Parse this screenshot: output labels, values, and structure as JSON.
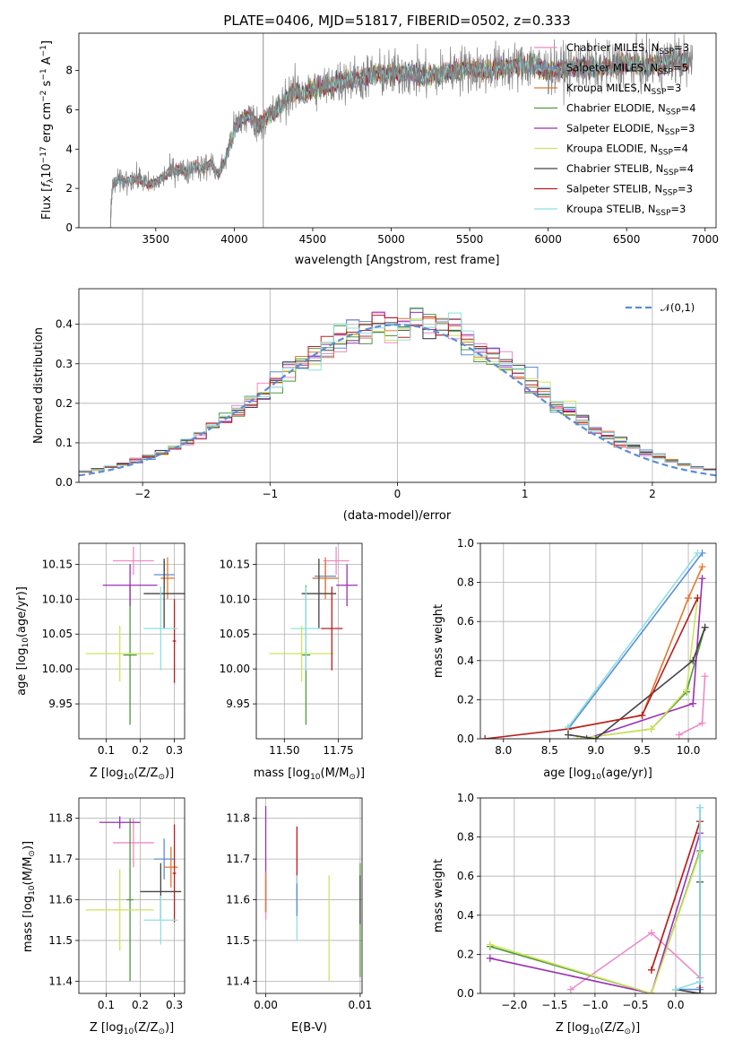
{
  "colors": {
    "Chabrier MILES": "#ee8ac8",
    "Salpeter MILES": "#5b8dd8",
    "Kroupa MILES": "#e0792f",
    "Chabrier ELODIE": "#4e9a3a",
    "Salpeter ELODIE": "#9a2fb5",
    "Kroupa ELODIE": "#cfe35f",
    "Chabrier STELIB": "#444444",
    "Salpeter STELIB": "#b81e1e",
    "Kroupa STELIB": "#8ee0e0"
  },
  "chart_data": [
    {
      "id": "spectrum",
      "type": "line",
      "title": "PLATE=0406, MJD=51817, FIBERID=0502, z=0.333",
      "xlabel": "wavelength [Angstrom, rest frame]",
      "ylabel_parts": [
        "Flux [",
        "f",
        "λ",
        "10",
        "−17",
        " erg cm",
        "−2",
        " s",
        "−1",
        " A",
        "−1",
        "]"
      ],
      "xlim": [
        3010,
        7070
      ],
      "ylim": [
        0,
        9.9
      ],
      "xticks": [
        3500,
        4000,
        4500,
        5000,
        5500,
        6000,
        6500,
        7000
      ],
      "yticks": [
        0,
        2,
        4,
        6,
        8
      ],
      "vline_x": 4185,
      "x": [
        3200,
        3230,
        3300,
        3400,
        3450,
        3500,
        3550,
        3600,
        3650,
        3700,
        3750,
        3800,
        3850,
        3900,
        3950,
        4000,
        4050,
        4100,
        4150,
        4200,
        4250,
        4300,
        4350,
        4400,
        4450,
        4500,
        4600,
        4700,
        4800,
        4900,
        5000,
        5100,
        5200,
        5300,
        5400,
        5500,
        5600,
        5700,
        5800,
        5900,
        6000,
        6100,
        6200,
        6300,
        6400,
        6500,
        6600,
        6700,
        6800,
        6900
      ],
      "y": [
        0,
        2.3,
        2.4,
        2.5,
        2.2,
        2.3,
        2.6,
        2.9,
        3.0,
        2.8,
        3.2,
        3.0,
        3.3,
        2.7,
        3.6,
        5.0,
        5.5,
        5.7,
        5.2,
        5.6,
        5.8,
        6.2,
        6.8,
        6.9,
        6.8,
        7.1,
        7.2,
        7.5,
        7.6,
        7.8,
        7.8,
        7.9,
        7.7,
        7.8,
        8.0,
        8.1,
        8.0,
        8.2,
        8.2,
        8.3,
        8.0,
        8.1,
        8.2,
        8.1,
        8.2,
        8.4,
        8.2,
        8.3,
        8.6,
        8.4
      ],
      "legend_loc": "upper right",
      "legend": [
        {
          "model": "Chabrier MILES",
          "nssp": "3"
        },
        {
          "model": "Salpeter MILES",
          "nssp": "5"
        },
        {
          "model": "Kroupa MILES",
          "nssp": "3"
        },
        {
          "model": "Chabrier ELODIE",
          "nssp": "4"
        },
        {
          "model": "Salpeter ELODIE",
          "nssp": "3"
        },
        {
          "model": "Kroupa ELODIE",
          "nssp": "4"
        },
        {
          "model": "Chabrier STELIB",
          "nssp": "4"
        },
        {
          "model": "Salpeter STELIB",
          "nssp": "3"
        },
        {
          "model": "Kroupa STELIB",
          "nssp": "3"
        }
      ],
      "legend_text": {
        "n_label": "N",
        "n_sub": "SSP"
      }
    },
    {
      "id": "residuals",
      "type": "histogram",
      "xlabel": "(data-model)/error",
      "ylabel": "Normed distribution",
      "xlim": [
        -2.5,
        2.5
      ],
      "ylim": [
        0,
        0.49
      ],
      "xticks": [
        -2,
        -1,
        0,
        1,
        2
      ],
      "yticks": [
        0.0,
        0.1,
        0.2,
        0.3,
        0.4
      ],
      "bin_width": 0.1,
      "gaussian_label": "𝒩(0,1)",
      "grid": true
    },
    {
      "id": "age_vs_Z",
      "type": "errorbar",
      "xlabel_parts": [
        "Z [log",
        "10",
        "(Z/Z",
        "⊙",
        ")]"
      ],
      "ylabel_parts": [
        "age  [log",
        "10",
        "(age/yr)]"
      ],
      "xlim": [
        0.02,
        0.33
      ],
      "ylim": [
        9.9,
        10.18
      ],
      "xticks": [
        0.1,
        0.2,
        0.3
      ],
      "yticks": [
        9.95,
        10.0,
        10.05,
        10.1,
        10.15
      ],
      "points": [
        {
          "model": "Chabrier MILES",
          "x": 0.18,
          "xerr": 0.06,
          "y": 10.155,
          "yerr": 0.02
        },
        {
          "model": "Salpeter MILES",
          "x": 0.27,
          "xerr": 0.03,
          "y": 10.135,
          "yerr": 0.02
        },
        {
          "model": "Kroupa MILES",
          "x": 0.28,
          "xerr": 0.02,
          "y": 10.13,
          "yerr": 0.03
        },
        {
          "model": "Chabrier ELODIE",
          "x": 0.17,
          "xerr": 0.02,
          "y": 10.02,
          "yerr": 0.1
        },
        {
          "model": "Salpeter ELODIE",
          "x": 0.17,
          "xerr": 0.08,
          "y": 10.12,
          "yerr": 0.03
        },
        {
          "model": "Kroupa ELODIE",
          "x": 0.14,
          "xerr": 0.1,
          "y": 10.022,
          "yerr": 0.04
        },
        {
          "model": "Chabrier STELIB",
          "x": 0.27,
          "xerr": 0.06,
          "y": 10.108,
          "yerr": 0.05
        },
        {
          "model": "Salpeter STELIB",
          "x": 0.3,
          "xerr": 0.005,
          "y": 10.04,
          "yerr": 0.06
        },
        {
          "model": "Kroupa STELIB",
          "x": 0.26,
          "xerr": 0.05,
          "y": 10.058,
          "yerr": 0.06
        }
      ]
    },
    {
      "id": "age_vs_mass",
      "type": "errorbar",
      "xlabel_parts": [
        "mass [log",
        "10",
        "(M/M",
        "⊙",
        ")]"
      ],
      "ylabel_parts": [],
      "xlim": [
        11.37,
        11.86
      ],
      "ylim": [
        9.9,
        10.18
      ],
      "xticks": [
        11.5,
        11.75
      ],
      "yticks": [
        9.95,
        10.0,
        10.05,
        10.1,
        10.15
      ],
      "points": [
        {
          "model": "Chabrier MILES",
          "x": 11.74,
          "xerr": 0.06,
          "y": 10.155,
          "yerr": 0.02
        },
        {
          "model": "Salpeter MILES",
          "x": 11.69,
          "xerr": 0.05,
          "y": 10.133,
          "yerr": 0.02
        },
        {
          "model": "Kroupa MILES",
          "x": 11.69,
          "xerr": 0.06,
          "y": 10.13,
          "yerr": 0.03
        },
        {
          "model": "Chabrier ELODIE",
          "x": 11.6,
          "xerr": 0.02,
          "y": 10.02,
          "yerr": 0.1
        },
        {
          "model": "Salpeter ELODIE",
          "x": 11.79,
          "xerr": 0.05,
          "y": 10.12,
          "yerr": 0.03
        },
        {
          "model": "Kroupa ELODIE",
          "x": 11.58,
          "xerr": 0.15,
          "y": 10.022,
          "yerr": 0.04
        },
        {
          "model": "Chabrier STELIB",
          "x": 11.66,
          "xerr": 0.08,
          "y": 10.108,
          "yerr": 0.05
        },
        {
          "model": "Salpeter STELIB",
          "x": 11.72,
          "xerr": 0.05,
          "y": 10.058,
          "yerr": 0.06
        },
        {
          "model": "Kroupa STELIB",
          "x": 11.6,
          "xerr": 0.07,
          "y": 10.058,
          "yerr": 0.06
        }
      ]
    },
    {
      "id": "massweight_vs_age",
      "type": "line",
      "xlabel_parts": [
        "age  [log",
        "10",
        "(age/yr)]"
      ],
      "ylabel": "mass weight",
      "xlim": [
        7.75,
        10.3
      ],
      "ylim": [
        0,
        1.0
      ],
      "xticks": [
        8.0,
        8.5,
        9.0,
        9.5,
        10.0
      ],
      "yticks": [
        0.0,
        0.2,
        0.4,
        0.6,
        0.8,
        1.0
      ],
      "series": [
        {
          "model": "Chabrier MILES",
          "x": [
            9.9,
            10.15,
            10.18
          ],
          "y": [
            0.02,
            0.08,
            0.32
          ]
        },
        {
          "model": "Salpeter MILES",
          "x": [
            8.7,
            10.15
          ],
          "y": [
            0.05,
            0.95
          ]
        },
        {
          "model": "Kroupa MILES",
          "x": [
            8.7,
            9.5,
            10.0,
            10.15
          ],
          "y": [
            0.05,
            0.12,
            0.72,
            0.88
          ]
        },
        {
          "model": "Chabrier ELODIE",
          "x": [
            8.8,
            9.6,
            9.98,
            10.18
          ],
          "y": [
            0.0,
            0.05,
            0.24,
            0.57
          ]
        },
        {
          "model": "Salpeter ELODIE",
          "x": [
            8.9,
            10.05,
            10.15
          ],
          "y": [
            0.0,
            0.18,
            0.82
          ]
        },
        {
          "model": "Kroupa ELODIE",
          "x": [
            8.8,
            9.6,
            9.98,
            10.1
          ],
          "y": [
            0.0,
            0.05,
            0.25,
            0.72
          ]
        },
        {
          "model": "Chabrier STELIB",
          "x": [
            8.7,
            9.0,
            10.05,
            10.18
          ],
          "y": [
            0.02,
            0.0,
            0.4,
            0.57
          ]
        },
        {
          "model": "Salpeter STELIB",
          "x": [
            7.8,
            8.7,
            9.5,
            10.1
          ],
          "y": [
            0.0,
            0.05,
            0.12,
            0.72
          ]
        },
        {
          "model": "Kroupa STELIB",
          "x": [
            8.7,
            10.1
          ],
          "y": [
            0.06,
            0.95
          ]
        }
      ]
    },
    {
      "id": "mass_vs_Z",
      "type": "errorbar",
      "xlabel_parts": [
        "Z [log",
        "10",
        "(Z/Z",
        "⊙",
        ")]"
      ],
      "ylabel_parts": [
        "mass [log",
        "10",
        "(M/M",
        "⊙",
        ")]"
      ],
      "xlim": [
        0.02,
        0.33
      ],
      "ylim": [
        11.37,
        11.85
      ],
      "xticks": [
        0.1,
        0.2,
        0.3
      ],
      "yticks": [
        11.4,
        11.5,
        11.6,
        11.7,
        11.8
      ],
      "points": [
        {
          "model": "Chabrier MILES",
          "x": 0.18,
          "xerr": 0.06,
          "y": 11.74,
          "yerr": 0.06
        },
        {
          "model": "Salpeter MILES",
          "x": 0.27,
          "xerr": 0.03,
          "y": 11.7,
          "yerr": 0.05
        },
        {
          "model": "Kroupa MILES",
          "x": 0.29,
          "xerr": 0.02,
          "y": 11.68,
          "yerr": 0.05
        },
        {
          "model": "Chabrier ELODIE",
          "x": 0.17,
          "xerr": 0.01,
          "y": 11.6,
          "yerr": 0.2
        },
        {
          "model": "Salpeter ELODIE",
          "x": 0.14,
          "xerr": 0.06,
          "y": 11.79,
          "yerr": 0.015
        },
        {
          "model": "Kroupa ELODIE",
          "x": 0.14,
          "xerr": 0.1,
          "y": 11.575,
          "yerr": 0.1
        },
        {
          "model": "Chabrier STELIB",
          "x": 0.26,
          "xerr": 0.06,
          "y": 11.62,
          "yerr": 0.07
        },
        {
          "model": "Salpeter STELIB",
          "x": 0.3,
          "xerr": 0.005,
          "y": 11.665,
          "yerr": 0.12
        },
        {
          "model": "Kroupa STELIB",
          "x": 0.26,
          "xerr": 0.05,
          "y": 11.55,
          "yerr": 0.06
        }
      ]
    },
    {
      "id": "mass_vs_ebv",
      "type": "errorbar",
      "xlabel": "E(B-V)",
      "ylabel_parts": [],
      "xlim": [
        -0.001,
        0.0102
      ],
      "ylim": [
        11.37,
        11.85
      ],
      "xticks": [
        0.0,
        0.01
      ],
      "ytick_values": [
        11.4,
        11.5,
        11.6,
        11.7,
        11.8
      ],
      "points": [
        {
          "model": "Chabrier MILES",
          "x": 0.0,
          "xerr": 0.0,
          "y": 11.6,
          "yerr": 0.05
        },
        {
          "model": "Salpeter ELODIE",
          "x": 0.0,
          "xerr": 0.0,
          "y": 11.7,
          "yerr": 0.13
        },
        {
          "model": "Kroupa MILES",
          "x": 0.0,
          "xerr": 0.0,
          "y": 11.62,
          "yerr": 0.05
        },
        {
          "model": "Salpeter STELIB",
          "x": 0.0033,
          "xerr": 0.0,
          "y": 11.69,
          "yerr": 0.09
        },
        {
          "model": "Kroupa STELIB",
          "x": 0.0033,
          "xerr": 0.0,
          "y": 11.58,
          "yerr": 0.08
        },
        {
          "model": "Salpeter MILES",
          "x": 0.0033,
          "xerr": 0.0,
          "y": 11.6,
          "yerr": 0.04
        },
        {
          "model": "Kroupa ELODIE",
          "x": 0.0067,
          "xerr": 0.0,
          "y": 11.53,
          "yerr": 0.13
        },
        {
          "model": "Chabrier ELODIE",
          "x": 0.01,
          "xerr": 0.0,
          "y": 11.55,
          "yerr": 0.14
        },
        {
          "model": "Chabrier STELIB",
          "x": 0.01,
          "xerr": 0.0,
          "y": 11.6,
          "yerr": 0.06
        }
      ]
    },
    {
      "id": "massweight_vs_Z",
      "type": "line",
      "xlabel_parts": [
        "Z [log",
        "10",
        "(Z/Z",
        "⊙",
        ")]"
      ],
      "ylabel": "mass weight",
      "xlim": [
        -2.42,
        0.5
      ],
      "ylim": [
        0,
        1.0
      ],
      "xticks": [
        -2.0,
        -1.5,
        -1.0,
        -0.5,
        0.0
      ],
      "yticks": [
        0.0,
        0.2,
        0.4,
        0.6,
        0.8,
        1.0
      ],
      "series": [
        {
          "model": "Chabrier MILES",
          "x": [
            -1.3,
            -0.3,
            0.3,
            0.3
          ],
          "y": [
            0.02,
            0.31,
            0.08,
            0.03
          ]
        },
        {
          "model": "Salpeter MILES",
          "x": [
            0.0,
            0.3,
            0.3
          ],
          "y": [
            0.02,
            0.02,
            0.95
          ]
        },
        {
          "model": "Kroupa MILES",
          "x": [
            -0.3,
            0.3
          ],
          "y": [
            0.12,
            0.88
          ]
        },
        {
          "model": "Chabrier ELODIE",
          "x": [
            -2.3,
            -0.3,
            0.3
          ],
          "y": [
            0.24,
            0.0,
            0.73
          ]
        },
        {
          "model": "Salpeter ELODIE",
          "x": [
            -2.3,
            -0.3,
            0.3
          ],
          "y": [
            0.18,
            0.0,
            0.82
          ]
        },
        {
          "model": "Kroupa ELODIE",
          "x": [
            -2.3,
            -0.3,
            0.3
          ],
          "y": [
            0.25,
            0.0,
            0.72
          ]
        },
        {
          "model": "Chabrier STELIB",
          "x": [
            0.0,
            0.3,
            0.3
          ],
          "y": [
            0.02,
            0.0,
            0.57
          ]
        },
        {
          "model": "Salpeter STELIB",
          "x": [
            -0.3,
            0.3
          ],
          "y": [
            0.12,
            0.88
          ]
        },
        {
          "model": "Kroupa STELIB",
          "x": [
            0.0,
            0.3,
            0.3
          ],
          "y": [
            0.02,
            0.06,
            0.95
          ]
        }
      ]
    }
  ]
}
